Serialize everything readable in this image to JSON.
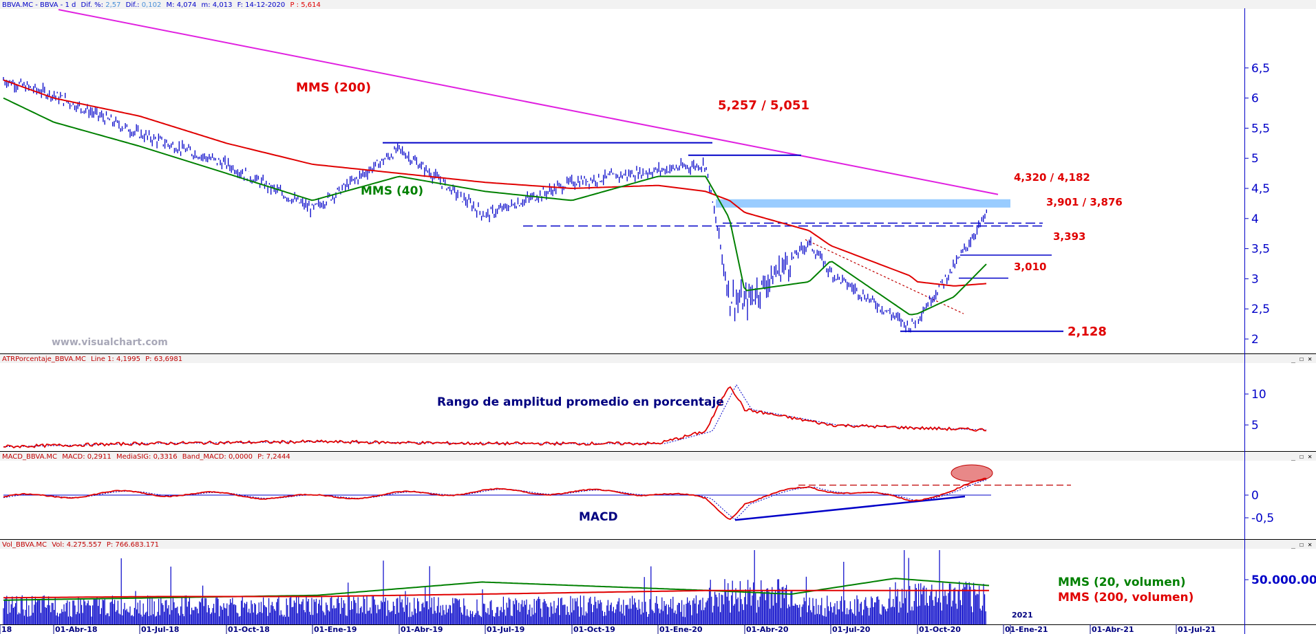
{
  "panels": {
    "price": {
      "header": {
        "symbol": "BBVA.MC - BBVA - 1 d",
        "dif_pct_label": "Dif. %:",
        "dif_pct": "2,57",
        "dif_label": "Dif.:",
        "dif": "0,102",
        "max": "M: 4,074",
        "min": "m: 4,013",
        "date": "F: 14-12-2020",
        "price": "P : 5,614"
      },
      "watermark": "www.visualchart.com",
      "y_ticks": [
        "6,5",
        "6",
        "5,5",
        "5",
        "4,5",
        "4",
        "3,5",
        "3",
        "2,5",
        "2"
      ]
    },
    "atr": {
      "header": {
        "name": "ATRPorcentaje_BBVA.MC",
        "line": "Line 1: 4,1995",
        "p": "P: 63,6981"
      },
      "y_ticks": [
        "10",
        "5"
      ]
    },
    "macd": {
      "header": {
        "name": "MACD_BBVA.MC",
        "macd": "MACD: 0,2911",
        "signal": "MediaSIG: 0,3316",
        "band": "Band_MACD: 0,0000",
        "p": "P: 7,2444"
      },
      "y_ticks": [
        "0",
        "-0,5"
      ]
    },
    "vol": {
      "header": {
        "name": "Vol_BBVA.MC",
        "vol": "Vol: 4.275.557",
        "p": "P: 766.683.171"
      },
      "y_ticks": [
        "50.000.00"
      ]
    }
  },
  "x_ticks": [
    "18",
    "01-Abr-18",
    "01-Jul-18",
    "01-Oct-18",
    "01-Ene-19",
    "01-Abr-19",
    "01-Jul-19",
    "01-Oct-19",
    "01-Ene-20",
    "01-Abr-20",
    "01-Jul-20",
    "01-Oct-20",
    "2021",
    "01-Ene-21",
    "01-Abr-21",
    "01-Jul-21"
  ],
  "annotations": {
    "mms200": "MMS (200)",
    "mms40": "MMS (40)",
    "level_5257": "5,257 / 5,051",
    "level_4320": "4,320 / 4,182",
    "level_3901": "3,901 / 3,876",
    "level_3393": "3,393",
    "level_3010": "3,010",
    "level_2128": "2,128",
    "atr_title": "Rango de amplitud promedio en porcentaje",
    "macd_title": "MACD",
    "vol_mms20": "MMS (20, volumen)",
    "vol_mms200": "MMS (200, volumen)"
  },
  "colors": {
    "price": "#0000c8",
    "mms200": "#e00000",
    "mms40": "#008000",
    "trend": "#e020e0",
    "zone": "#99ccff",
    "axis": "#0000c8"
  },
  "chart_data": [
    {
      "type": "line",
      "title": "",
      "x": [
        "2018-01-02",
        "2018-04-01",
        "2018-07-01",
        "2018-10-01",
        "2019-01-01",
        "2019-04-01",
        "2019-07-01",
        "2019-10-01",
        "2020-01-01",
        "2020-02-20",
        "2020-03-16",
        "2020-04-01",
        "2020-06-08",
        "2020-07-01",
        "2020-09-23",
        "2020-10-01",
        "2020-11-09",
        "2020-12-14"
      ],
      "ylim": [
        1.9,
        6.5
      ],
      "series": [
        {
          "name": "",
          "values": [
            6.3,
            6.05,
            5.4,
            4.9,
            4.15,
            5.15,
            4.05,
            4.6,
            4.8,
            4.9,
            2.7,
            2.6,
            3.6,
            3.1,
            2.2,
            2.35,
            3.2,
            4.07
          ]
        },
        {
          "name": "MMS (200)",
          "values": [
            6.3,
            6.0,
            5.7,
            5.25,
            4.9,
            4.75,
            4.6,
            4.5,
            4.55,
            4.45,
            4.3,
            4.1,
            3.8,
            3.55,
            3.05,
            2.95,
            2.88,
            2.92
          ]
        },
        {
          "name": "MMS (40)",
          "values": [
            6.0,
            5.6,
            5.2,
            4.75,
            4.3,
            4.7,
            4.45,
            4.3,
            4.7,
            4.7,
            4.0,
            2.8,
            2.95,
            3.3,
            2.4,
            2.42,
            2.7,
            3.25
          ]
        }
      ],
      "annotations": {
        "resistance_high": [
          5.257,
          5.051
        ],
        "zone": [
          4.32,
          4.182
        ],
        "support_mid": [
          3.901,
          3.876
        ],
        "support": [
          3.393,
          3.01
        ],
        "low": 2.128
      }
    },
    {
      "type": "line",
      "title": "",
      "x": [
        "2018-01-02",
        "2018-07-01",
        "2019-01-01",
        "2019-07-01",
        "2020-01-01",
        "2020-02-20",
        "2020-03-16",
        "2020-04-01",
        "2020-07-01",
        "2020-10-01",
        "2020-12-14"
      ],
      "ylim": [
        0,
        12.5
      ],
      "series": [
        {
          "name": "",
          "values": [
            1.5,
            2.0,
            2.3,
            2.0,
            2.0,
            4.0,
            11.5,
            7.5,
            5.0,
            4.5,
            4.2
          ]
        }
      ]
    },
    {
      "type": "line",
      "title": "",
      "x": [
        "2018-01-02",
        "2018-07-01",
        "2019-01-01",
        "2019-07-01",
        "2020-01-01",
        "2020-02-20",
        "2020-03-16",
        "2020-04-01",
        "2020-06-08",
        "2020-09-23",
        "2020-11-09",
        "2020-12-14"
      ],
      "ylim": [
        -0.65,
        0.55
      ],
      "series": [
        {
          "name": "",
          "values": [
            -0.05,
            0.05,
            -0.05,
            0.08,
            0.05,
            -0.1,
            -0.5,
            -0.15,
            0.18,
            -0.1,
            0.1,
            0.33
          ]
        }
      ]
    },
    {
      "type": "bar",
      "title": "",
      "ylim": [
        0,
        100000000
      ],
      "series": [
        {
          "name": "MMS (20, volumen)",
          "values": [
            20000000,
            22000000,
            24000000,
            35000000,
            28000000,
            25000000,
            38000000,
            32000000
          ]
        },
        {
          "name": "MMS (200, volumen)",
          "values": [
            22000000,
            23000000,
            23000000,
            25000000,
            28000000,
            28000000,
            28000000,
            28000000
          ]
        }
      ]
    }
  ]
}
